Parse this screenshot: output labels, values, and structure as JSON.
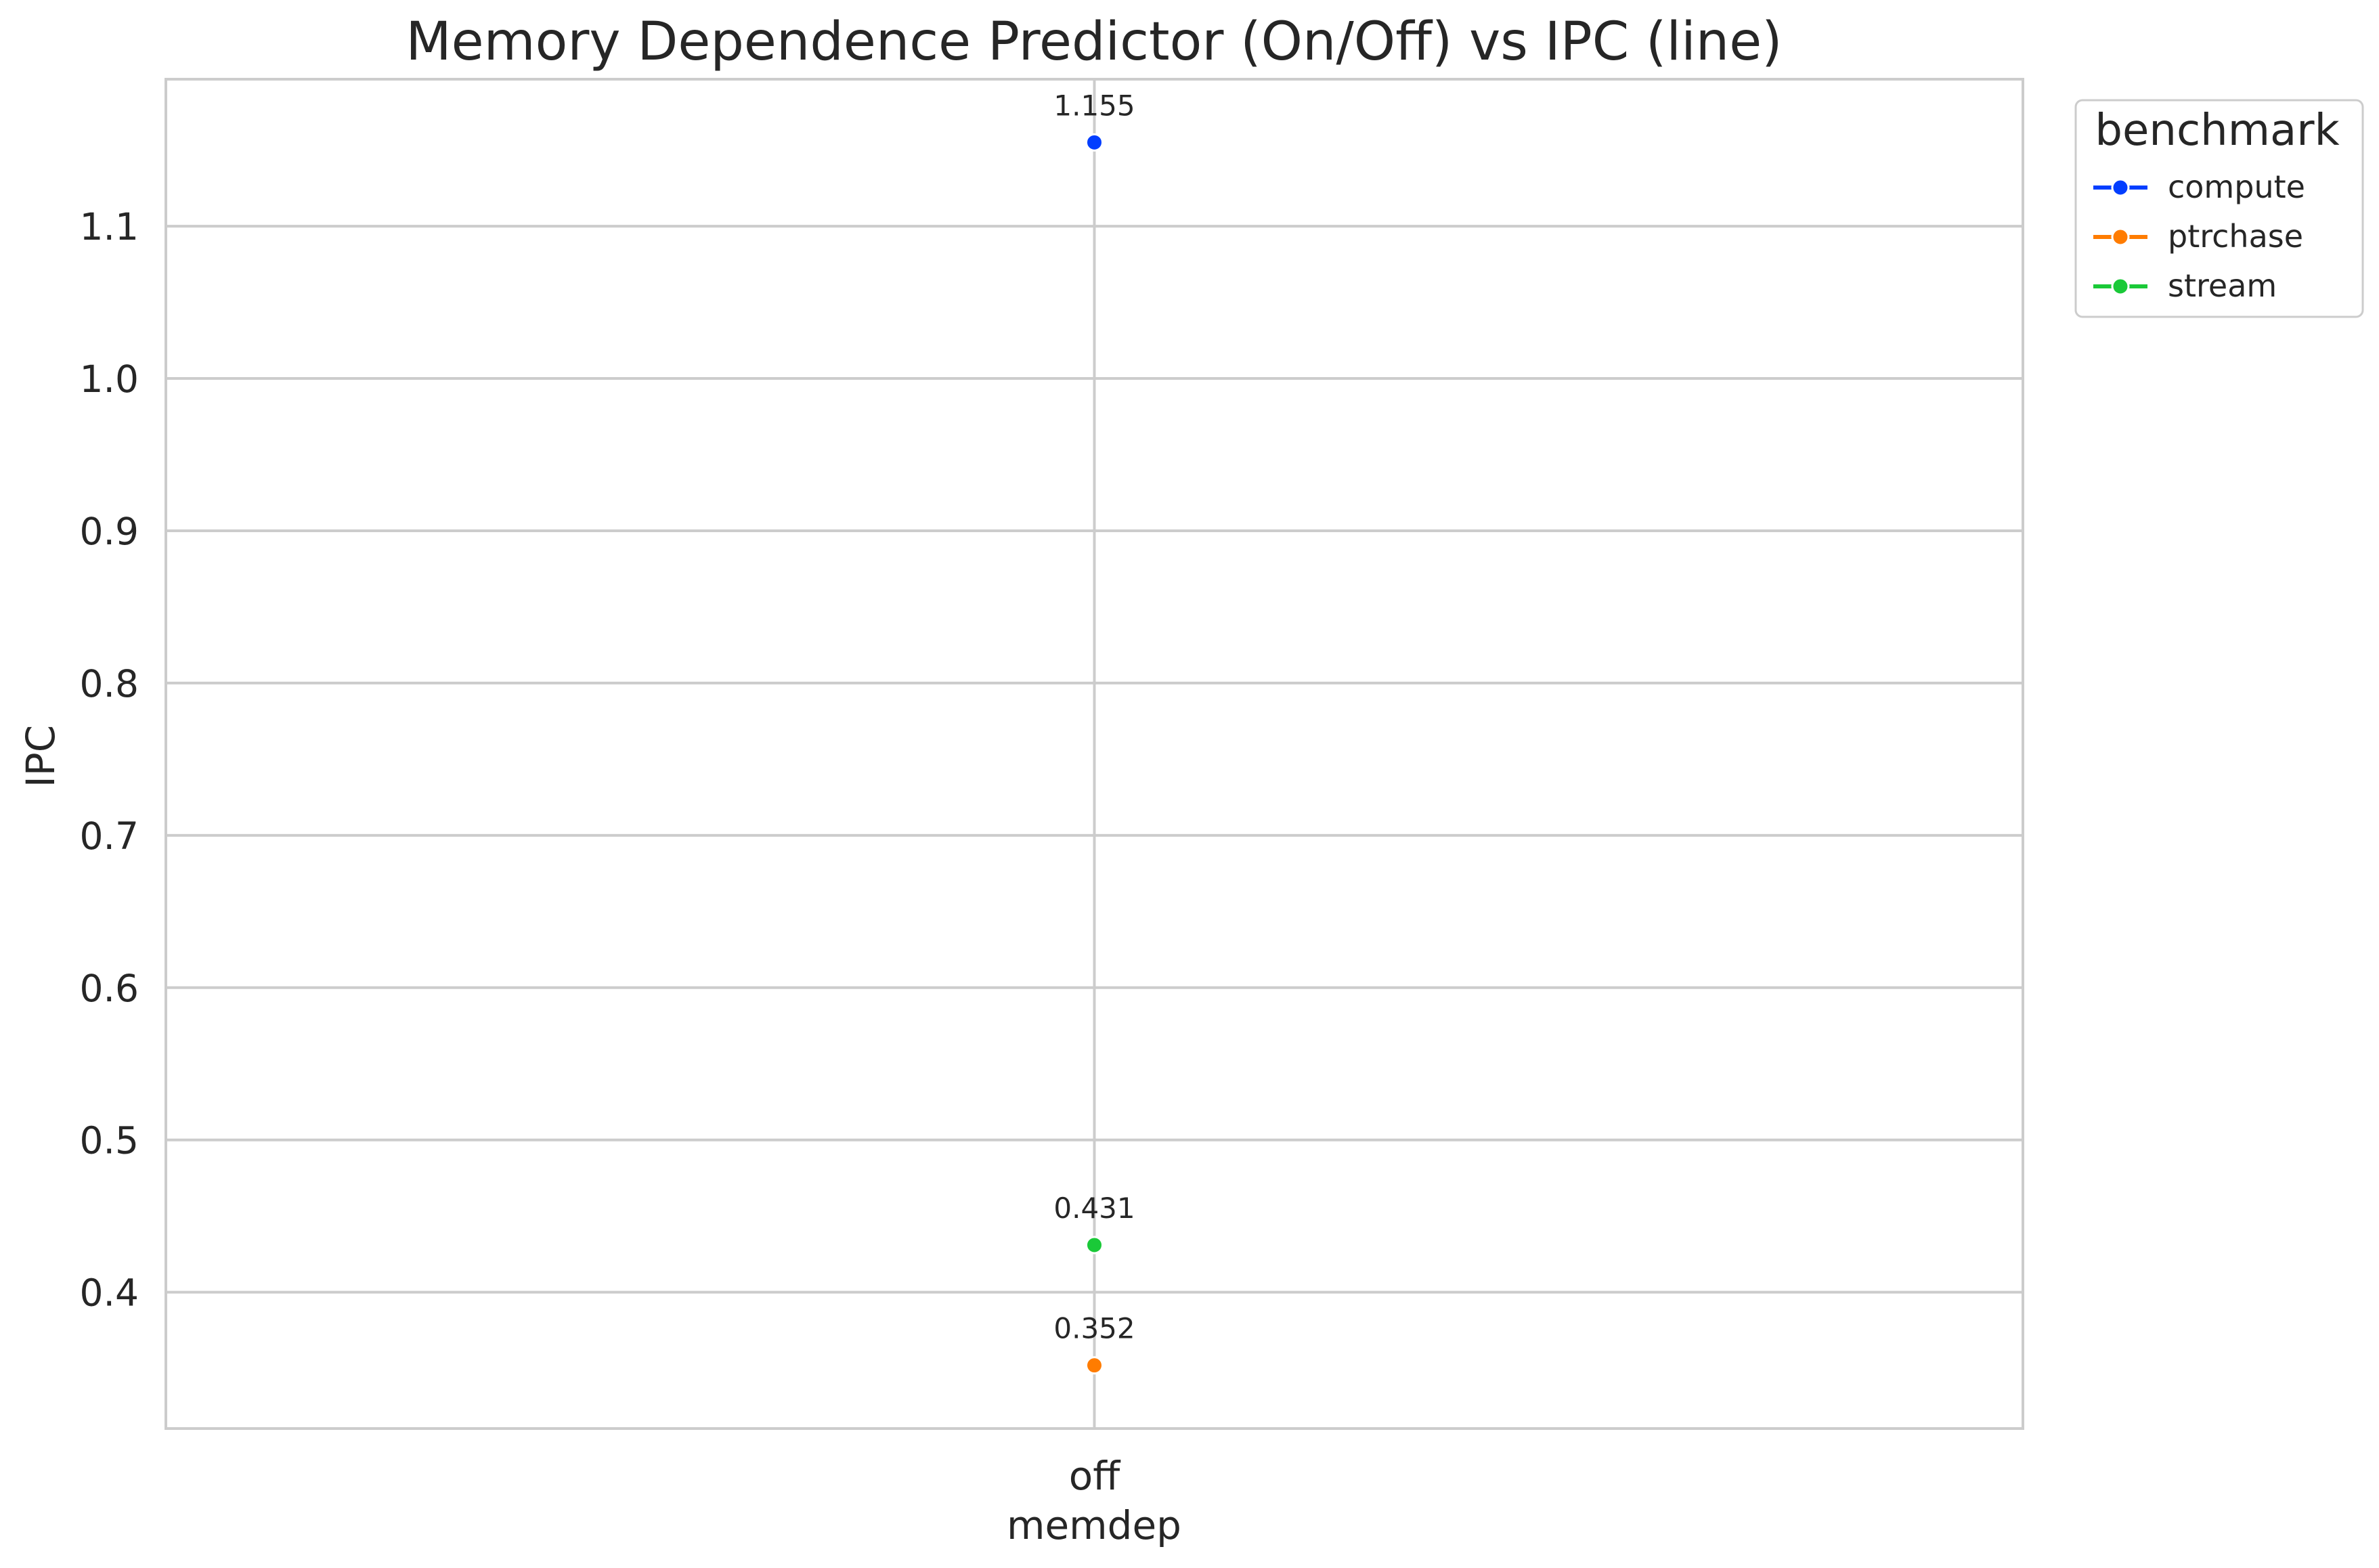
{
  "chart_data": {
    "type": "line",
    "title": "Memory Dependence Predictor (On/Off) vs IPC (line)",
    "xlabel": "memdep",
    "ylabel": "IPC",
    "categories": [
      "off"
    ],
    "ylim": [
      0.3105,
      1.1965
    ],
    "yticks": [
      0.4,
      0.5,
      0.6,
      0.7,
      0.8,
      0.9,
      1.0,
      1.1
    ],
    "yticklabels": [
      "0.4",
      "0.5",
      "0.6",
      "0.7",
      "0.8",
      "0.9",
      "1.0",
      "1.1"
    ],
    "grid": true,
    "legend": {
      "title": "benchmark",
      "placement": "outside top-right"
    },
    "series": [
      {
        "name": "compute",
        "color": "#023eff",
        "values": [
          1.155
        ],
        "labels": [
          "1.155"
        ]
      },
      {
        "name": "ptrchase",
        "color": "#ff7c00",
        "values": [
          0.352
        ],
        "labels": [
          "0.352"
        ]
      },
      {
        "name": "stream",
        "color": "#1ac938",
        "values": [
          0.431
        ],
        "labels": [
          "0.431"
        ]
      }
    ]
  }
}
